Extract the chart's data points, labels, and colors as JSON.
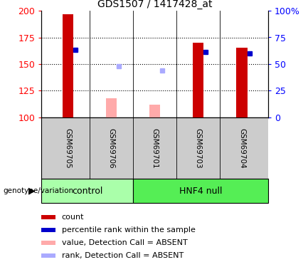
{
  "title": "GDS1507 / 1417428_at",
  "samples": [
    "GSM69705",
    "GSM69706",
    "GSM69701",
    "GSM69703",
    "GSM69704"
  ],
  "ylim_left": [
    100,
    200
  ],
  "ylim_right": [
    0,
    100
  ],
  "yticks_left": [
    100,
    125,
    150,
    175,
    200
  ],
  "yticks_right": [
    0,
    25,
    50,
    75,
    100
  ],
  "ytick_labels_right": [
    "0",
    "25",
    "50",
    "75",
    "100%"
  ],
  "dotted_lines": [
    125,
    150,
    175
  ],
  "bar_data": [
    {
      "sample": "GSM69705",
      "count_value": 197,
      "count_base": 100,
      "absent": false,
      "rank_value": 163
    },
    {
      "sample": "GSM69706",
      "count_value": 118,
      "count_base": 100,
      "absent": true,
      "rank_value": 148
    },
    {
      "sample": "GSM69701",
      "count_value": 112,
      "count_base": 100,
      "absent": true,
      "rank_value": 144
    },
    {
      "sample": "GSM69703",
      "count_value": 170,
      "count_base": 100,
      "absent": false,
      "rank_value": 161
    },
    {
      "sample": "GSM69704",
      "count_value": 165,
      "count_base": 100,
      "absent": false,
      "rank_value": 160
    }
  ],
  "color_count_present": "#cc0000",
  "color_count_absent": "#ffaaaa",
  "color_rank_present": "#0000cc",
  "color_rank_absent": "#aaaaff",
  "bar_width": 0.25,
  "rank_marker_size": 5,
  "group_control_color": "#aaffaa",
  "group_hnf4_color": "#55ee55",
  "sample_box_color": "#cccccc",
  "legend_items": [
    {
      "label": "count",
      "color": "#cc0000"
    },
    {
      "label": "percentile rank within the sample",
      "color": "#0000cc"
    },
    {
      "label": "value, Detection Call = ABSENT",
      "color": "#ffaaaa"
    },
    {
      "label": "rank, Detection Call = ABSENT",
      "color": "#aaaaff"
    }
  ]
}
